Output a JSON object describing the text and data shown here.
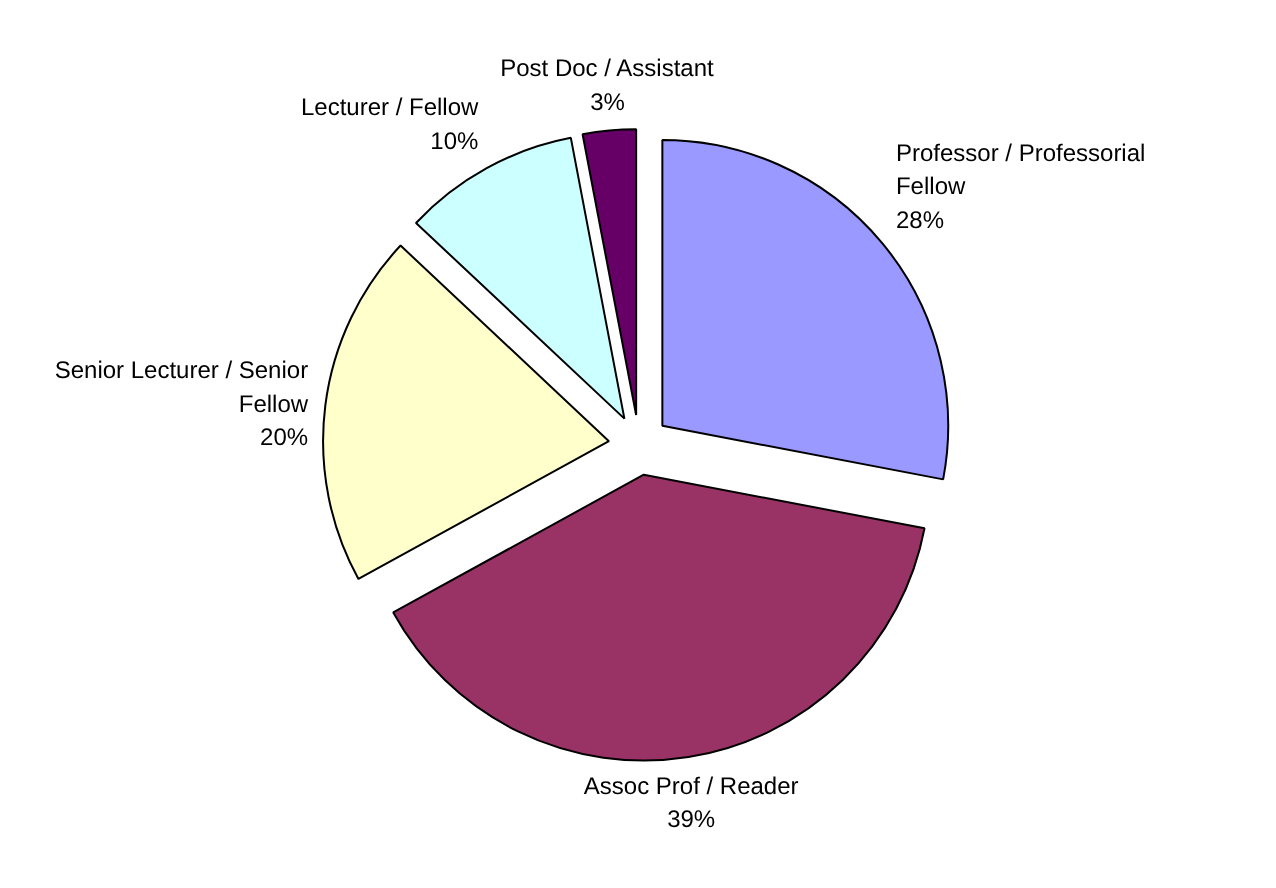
{
  "chart_data": {
    "type": "pie",
    "categories": [
      "Professor / Professorial Fellow",
      "Assoc Prof / Reader",
      "Senior Lecturer / Senior Fellow",
      "Lecturer / Fellow",
      "Post Doc / Assistant"
    ],
    "values": [
      28,
      39,
      20,
      10,
      3
    ],
    "value_labels": [
      "28%",
      "39%",
      "20%",
      "10%",
      "3%"
    ],
    "colors": [
      "#9999ff",
      "#993366",
      "#ffffcc",
      "#ccffff",
      "#660066"
    ],
    "legend": false
  }
}
